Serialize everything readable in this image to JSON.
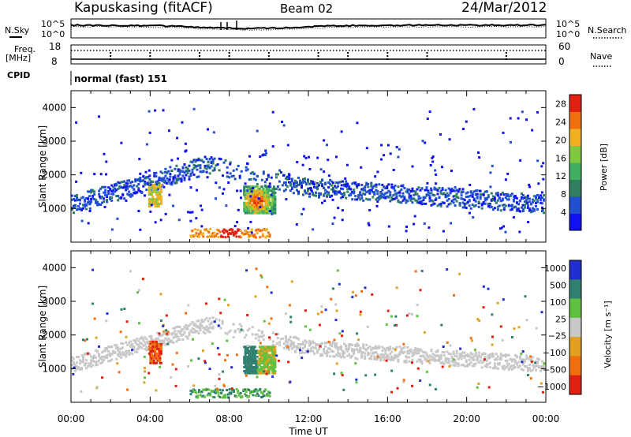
{
  "header": {
    "station": "Kapuskasing (fitACF)",
    "beam": "Beam 02",
    "date": "24/Mar/2012"
  },
  "strips": {
    "nsky_label": "N.Sky",
    "nsearch_label": "N.Search",
    "noise_ticks": [
      "10^5",
      "10^0"
    ],
    "freq_label": "Freq.",
    "freq_unit": "[MHz]",
    "freq_ticks": [
      "18",
      "8"
    ],
    "nave_label": "Nave",
    "nave_ticks": [
      "60",
      "0"
    ],
    "cpid_label": "CPID",
    "cpid_value": "normal (fast) 151"
  },
  "colors": {
    "power_scale": [
      "#1010f0",
      "#2050d0",
      "#308060",
      "#40b060",
      "#80c840",
      "#f0b020",
      "#f07010",
      "#e02010"
    ],
    "velocity_scale": [
      "#2030d0",
      "#308070",
      "#60c040",
      "#c8c8c8",
      "#e0a020",
      "#f07010",
      "#e02010"
    ]
  },
  "chart_data": [
    {
      "type": "heatmap",
      "title": "Power",
      "xlabel": "Time UT",
      "ylabel": "Slant Range [km]",
      "xlim": [
        0,
        24
      ],
      "ylim": [
        0,
        4500
      ],
      "x_tick_labels": [
        "00:00",
        "04:00",
        "08:00",
        "12:00",
        "16:00",
        "20:00",
        "00:00"
      ],
      "y_ticks": [
        1000,
        2000,
        3000,
        4000
      ],
      "colorbar": {
        "label": "Power [dB]",
        "ticks": [
          4,
          8,
          12,
          16,
          20,
          24,
          28
        ],
        "range": [
          0,
          30
        ]
      },
      "features": [
        {
          "name": "ground-scatter band",
          "time_start": 0,
          "time_end": 24,
          "range_start_km": 1000,
          "range_end_km": 2300
        },
        {
          "name": "F-region patch",
          "time_start": 8.7,
          "time_end": 10.3,
          "range_start_km": 900,
          "range_end_km": 1700,
          "peak_power_db": 28
        },
        {
          "name": "E-region echoes",
          "time_start": 6.0,
          "time_end": 10.0,
          "range_start_km": 200,
          "range_end_km": 600
        }
      ]
    },
    {
      "type": "heatmap",
      "title": "Velocity",
      "xlabel": "Time UT",
      "ylabel": "Slant Range [km]",
      "xlim": [
        0,
        24
      ],
      "ylim": [
        0,
        4500
      ],
      "x_tick_labels": [
        "00:00",
        "04:00",
        "08:00",
        "12:00",
        "16:00",
        "20:00",
        "00:00"
      ],
      "y_ticks": [
        1000,
        2000,
        3000,
        4000
      ],
      "colorbar": {
        "label": "Velocity [m s⁻¹]",
        "ticks": [
          "1000",
          "500",
          "100",
          "25",
          "−25",
          "−100",
          "−500",
          "−1000"
        ]
      }
    }
  ]
}
